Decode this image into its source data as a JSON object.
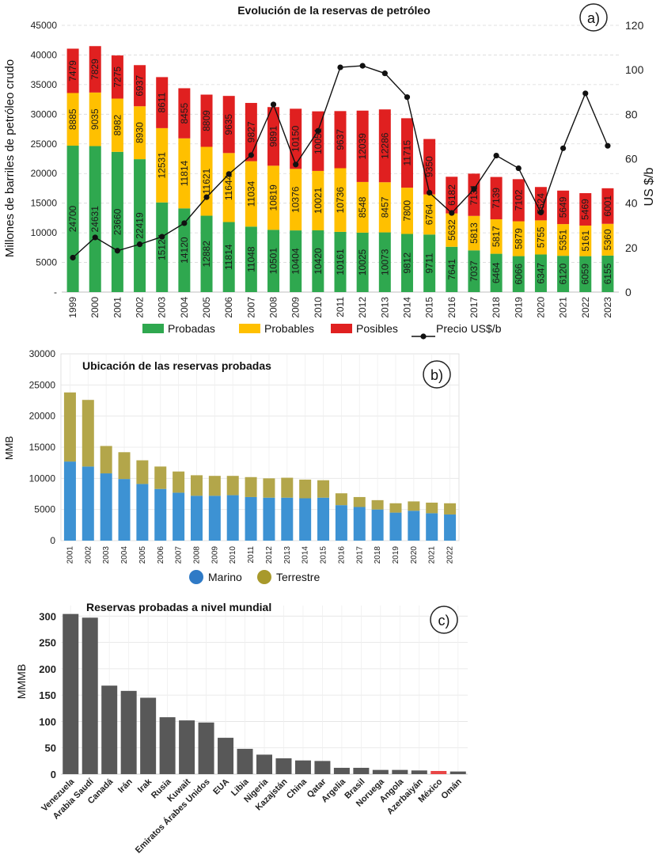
{
  "chart_data": [
    {
      "panel": "a)",
      "type": "bar",
      "stacked": true,
      "title": "Evolución de la reservas de petróleo",
      "ylabel": "Millones de barriles de petróleo crudo",
      "y2label": "US $/b",
      "ylim": [
        0,
        45000
      ],
      "yticks": [
        0,
        5000,
        10000,
        15000,
        20000,
        25000,
        30000,
        35000,
        40000,
        45000
      ],
      "ytick_labels": [
        "-",
        "5000",
        "10000",
        "15000",
        "20000",
        "25000",
        "30000",
        "35000",
        "40000",
        "45000"
      ],
      "y2lim": [
        0,
        120
      ],
      "y2ticks": [
        0,
        20,
        40,
        60,
        80,
        100,
        120
      ],
      "categories": [
        "1999",
        "2000",
        "2001",
        "2002",
        "2003",
        "2004",
        "2005",
        "2006",
        "2007",
        "2008",
        "2009",
        "2010",
        "2011",
        "2012",
        "2013",
        "2014",
        "2015",
        "2016",
        "2017",
        "2018",
        "2019",
        "2020",
        "2021",
        "2022",
        "2023"
      ],
      "series": [
        {
          "name": "Probadas",
          "color": "#2fa84f",
          "values": [
            24700,
            24631,
            23660,
            22419,
            15124,
            14120,
            12882,
            11814,
            11048,
            10501,
            10404,
            10420,
            10161,
            10025,
            10073,
            9812,
            9711,
            7641,
            7037,
            6464,
            6066,
            6347,
            6120,
            6059,
            6155
          ]
        },
        {
          "name": "Probables",
          "color": "#ffc000",
          "values": [
            8885,
            9035,
            8982,
            8930,
            12531,
            11814,
            11621,
            11644,
            11034,
            10819,
            10376,
            10021,
            10736,
            8548,
            8457,
            7800,
            6764,
            5632,
            5813,
            5817,
            5879,
            5755,
            5351,
            5161,
            5360
          ]
        },
        {
          "name": "Posibles",
          "color": "#e02020",
          "values": [
            7479,
            7829,
            7275,
            6937,
            8611,
            8455,
            8809,
            9635,
            9827,
            9891,
            10150,
            10051,
            9637,
            12039,
            12286,
            11715,
            9350,
            6182,
            7131,
            7139,
            7102,
            5624,
            5649,
            5469,
            6001
          ]
        }
      ],
      "line": {
        "name": "Precio US$/b",
        "color": "#111111",
        "values": [
          15.5,
          24.6,
          18.6,
          21.5,
          24.9,
          31.0,
          42.7,
          53.1,
          61.6,
          84.4,
          57.4,
          72.5,
          101.1,
          101.8,
          98.4,
          87.7,
          44.7,
          35.6,
          46.3,
          61.4,
          55.7,
          35.8,
          64.7,
          89.4,
          65.8
        ]
      },
      "legend_position": "bottom"
    },
    {
      "panel": "b)",
      "type": "bar",
      "stacked": true,
      "title": "Ubicación de las reservas probadas",
      "ylabel": "MMB",
      "ylim": [
        0,
        30000
      ],
      "yticks": [
        0,
        5000,
        10000,
        15000,
        20000,
        25000,
        30000
      ],
      "categories": [
        "2001",
        "2002",
        "2003",
        "2004",
        "2005",
        "2006",
        "2007",
        "2008",
        "2009",
        "2010",
        "2011",
        "2012",
        "2013",
        "2014",
        "2015",
        "2016",
        "2017",
        "2018",
        "2019",
        "2020",
        "2021",
        "2022"
      ],
      "series": [
        {
          "name": "Marino",
          "color": "#3d92d3",
          "values": [
            12700,
            11900,
            10800,
            9900,
            9100,
            8300,
            7700,
            7200,
            7200,
            7300,
            7000,
            6900,
            6900,
            6800,
            6900,
            5700,
            5400,
            5000,
            4500,
            4800,
            4400,
            4200
          ]
        },
        {
          "name": "Terrestre",
          "color": "#b3a64a",
          "values": [
            11100,
            10700,
            4400,
            4300,
            3800,
            3600,
            3400,
            3300,
            3200,
            3100,
            3200,
            3100,
            3200,
            3000,
            2800,
            1900,
            1600,
            1500,
            1500,
            1500,
            1700,
            1800
          ]
        }
      ],
      "legend_position": "bottom"
    },
    {
      "panel": "c)",
      "type": "bar",
      "title": "Reservas probadas a nivel mundial",
      "ylabel": "MMMB",
      "ylim": [
        0,
        320
      ],
      "yticks": [
        0,
        50,
        100,
        150,
        200,
        250,
        300
      ],
      "categories": [
        "Venezuela",
        "Arabia Saudí",
        "Canadá",
        "Irán",
        "Irak",
        "Rusia",
        "Kuwait",
        "Emiratos Árabes Unidos",
        "EUA",
        "Libia",
        "Nigeria",
        "Kazajstán",
        "China",
        "Qatar",
        "Argelia",
        "Brasil",
        "Noruega",
        "Angola",
        "Azerbaiyán",
        "México",
        "Omán"
      ],
      "values": [
        304,
        297,
        168,
        158,
        145,
        108,
        102,
        98,
        69,
        48,
        37,
        30,
        26,
        25,
        12,
        12,
        8,
        8,
        7,
        6,
        5
      ],
      "colors": {
        "default": "#585858",
        "highlight": "#e84545",
        "highlight_category": "México"
      }
    }
  ],
  "panels": {
    "a": {
      "label": "a)",
      "title": "Evolución de la reservas de petróleo"
    },
    "b": {
      "label": "b)",
      "title": "Ubicación de las reservas probadas"
    },
    "c": {
      "label": "c)",
      "title": "Reservas probadas a nivel mundial"
    }
  }
}
